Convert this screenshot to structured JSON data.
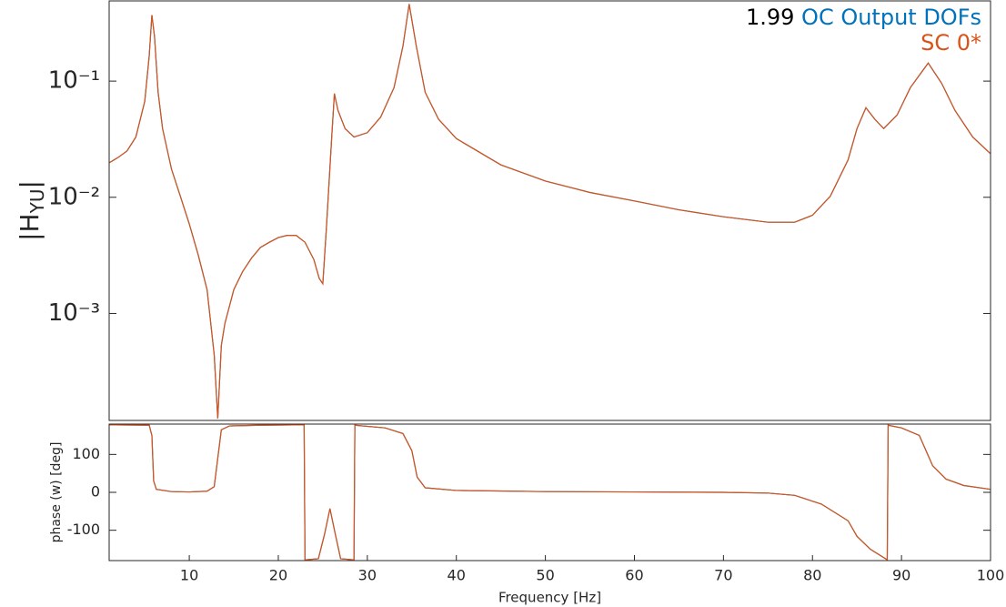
{
  "chart_data": [
    {
      "type": "line",
      "ylog": true,
      "ylabel": [
        "|H",
        "YU",
        "|"
      ],
      "annotation": "1.99",
      "legend": "upper right",
      "xlim": [
        1,
        100
      ],
      "ylim": [
        0.00012,
        0.49
      ],
      "yticks": [
        {
          "value": 0.001,
          "label": "10⁻³"
        },
        {
          "value": 0.01,
          "label": "10⁻²"
        },
        {
          "value": 0.1,
          "label": "10⁻¹"
        }
      ],
      "x": [
        1,
        2,
        3,
        4,
        5,
        5.5,
        5.8,
        6.1,
        6.5,
        7,
        8,
        9,
        10,
        11,
        12,
        12.8,
        13.2,
        13.6,
        14,
        15,
        16,
        17,
        18,
        19,
        20,
        21,
        22,
        23,
        24,
        24.6,
        25,
        25.4,
        26,
        26.3,
        26.7,
        27.5,
        28.5,
        30,
        31.5,
        33,
        34,
        34.7,
        35.5,
        36.5,
        38,
        40,
        45,
        50,
        55,
        60,
        65,
        70,
        75,
        78,
        80,
        82,
        84,
        85,
        86,
        87,
        88,
        89.5,
        91,
        93,
        94.5,
        96,
        98,
        100
      ],
      "series": [
        {
          "name": "OC Output DOFs",
          "color": "#0072BD",
          "values": [
            0.0198,
            0.022,
            0.025,
            0.033,
            0.067,
            0.165,
            0.37,
            0.24,
            0.08,
            0.039,
            0.0175,
            0.0102,
            0.0059,
            0.0032,
            0.0016,
            0.00044,
            0.000125,
            0.00053,
            0.00082,
            0.0016,
            0.0023,
            0.003,
            0.0037,
            0.0041,
            0.0045,
            0.0047,
            0.0047,
            0.0041,
            0.0029,
            0.002,
            0.0018,
            0.0054,
            0.033,
            0.078,
            0.056,
            0.039,
            0.033,
            0.036,
            0.049,
            0.088,
            0.2,
            0.46,
            0.2,
            0.08,
            0.047,
            0.032,
            0.019,
            0.0138,
            0.011,
            0.0093,
            0.0078,
            0.0068,
            0.0061,
            0.0061,
            0.007,
            0.0102,
            0.021,
            0.039,
            0.059,
            0.047,
            0.039,
            0.051,
            0.088,
            0.143,
            0.096,
            0.056,
            0.033,
            0.0237
          ]
        },
        {
          "name": "SC 0*",
          "color": "#D95319",
          "values": [
            0.0198,
            0.022,
            0.025,
            0.033,
            0.067,
            0.165,
            0.37,
            0.24,
            0.08,
            0.039,
            0.0175,
            0.0102,
            0.0059,
            0.0032,
            0.0016,
            0.00044,
            0.000125,
            0.00053,
            0.00082,
            0.0016,
            0.0023,
            0.003,
            0.0037,
            0.0041,
            0.0045,
            0.0047,
            0.0047,
            0.0041,
            0.0029,
            0.002,
            0.0018,
            0.0054,
            0.033,
            0.078,
            0.056,
            0.039,
            0.033,
            0.036,
            0.049,
            0.088,
            0.2,
            0.46,
            0.2,
            0.08,
            0.047,
            0.032,
            0.019,
            0.0138,
            0.011,
            0.0093,
            0.0078,
            0.0068,
            0.0061,
            0.0061,
            0.007,
            0.0102,
            0.021,
            0.039,
            0.059,
            0.047,
            0.039,
            0.051,
            0.088,
            0.143,
            0.096,
            0.056,
            0.033,
            0.0237
          ]
        }
      ]
    },
    {
      "type": "line",
      "ylabel": "phase (w) [deg]",
      "xlabel": "Frequency [Hz]",
      "xlim": [
        1,
        100
      ],
      "xticks": [
        10,
        20,
        30,
        40,
        50,
        60,
        70,
        80,
        90,
        100
      ],
      "ylim": [
        -180,
        180
      ],
      "yticks": [
        -100,
        0,
        100
      ],
      "x": [
        1,
        5.5,
        5.8,
        6.0,
        6.3,
        8,
        10,
        12,
        12.8,
        13.2,
        13.6,
        14.5,
        18,
        22.9,
        23.0,
        24.5,
        25.2,
        25.8,
        26.4,
        27,
        28.5,
        28.6,
        32,
        34,
        35,
        35.6,
        36.5,
        40,
        50,
        60,
        70,
        75,
        78,
        81,
        84,
        85,
        86.5,
        88.4,
        88.5,
        90,
        92,
        93.5,
        95,
        97,
        100
      ],
      "series": [
        {
          "name": "OC Output DOFs",
          "color": "#0072BD",
          "values": [
            178,
            177,
            150,
            30,
            8,
            2,
            1,
            3,
            15,
            90,
            165,
            175,
            177,
            178,
            -178,
            -175,
            -110,
            -43,
            -110,
            -175,
            -178,
            177,
            170,
            155,
            110,
            40,
            12,
            5,
            2,
            1,
            0,
            -2,
            -8,
            -31,
            -75,
            -116,
            -150,
            -178,
            177,
            170,
            150,
            70,
            35,
            18,
            8
          ]
        },
        {
          "name": "SC 0*",
          "color": "#D95319",
          "values": [
            178,
            177,
            150,
            30,
            8,
            2,
            1,
            3,
            15,
            90,
            165,
            175,
            177,
            178,
            -178,
            -175,
            -110,
            -43,
            -110,
            -175,
            -178,
            177,
            170,
            155,
            110,
            40,
            12,
            5,
            2,
            1,
            0,
            -2,
            -8,
            -31,
            -75,
            -116,
            -150,
            -178,
            177,
            170,
            150,
            70,
            35,
            18,
            8
          ]
        }
      ]
    }
  ]
}
